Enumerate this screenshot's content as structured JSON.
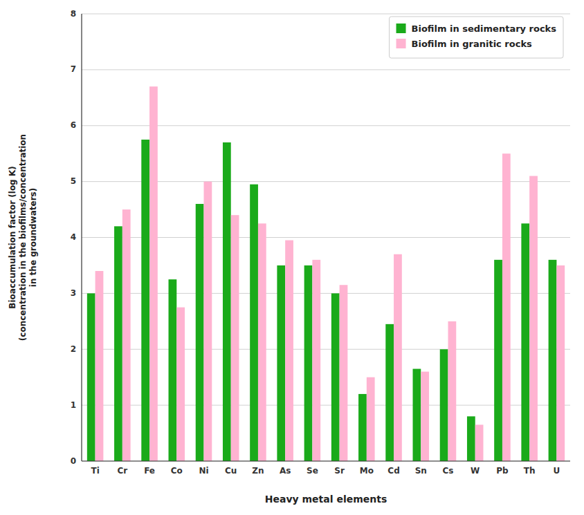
{
  "chart_data": {
    "type": "bar",
    "categories": [
      "Ti",
      "Cr",
      "Fe",
      "Co",
      "Ni",
      "Cu",
      "Zn",
      "As",
      "Se",
      "Sr",
      "Mo",
      "Cd",
      "Sn",
      "Cs",
      "W",
      "Pb",
      "Th",
      "U"
    ],
    "series": [
      {
        "name": "Biofilm in sedimentary rocks",
        "color": "#1aaa1a",
        "values": [
          3.0,
          4.2,
          5.75,
          3.25,
          4.6,
          5.7,
          4.95,
          3.5,
          3.5,
          3.0,
          1.2,
          2.45,
          1.65,
          2.0,
          0.8,
          3.6,
          4.25,
          3.6
        ]
      },
      {
        "name": "Biofilm in granitic rocks",
        "color": "#ffb3d1",
        "values": [
          3.4,
          4.5,
          6.7,
          2.75,
          5.0,
          4.4,
          4.25,
          3.95,
          3.6,
          3.15,
          1.5,
          3.7,
          1.6,
          2.5,
          0.65,
          5.5,
          5.1,
          3.5
        ]
      }
    ],
    "xlabel": "Heavy metal elements",
    "ylabel": "Bioaccumulation factor (log K)\n(concentration in the biofilms/concentration\nin the groundwaters)",
    "ylim": [
      0,
      8
    ],
    "yticks": [
      0,
      1,
      2,
      3,
      4,
      5,
      6,
      7,
      8
    ],
    "grid": true,
    "legend": "upper right"
  }
}
